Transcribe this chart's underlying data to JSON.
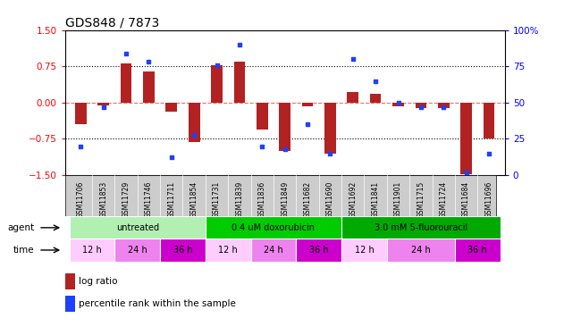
{
  "title": "GDS848 / 7873",
  "samples": [
    "GSM11706",
    "GSM11853",
    "GSM11729",
    "GSM11746",
    "GSM11711",
    "GSM11854",
    "GSM11731",
    "GSM11839",
    "GSM11836",
    "GSM11849",
    "GSM11682",
    "GSM11690",
    "GSM11692",
    "GSM11841",
    "GSM11901",
    "GSM11715",
    "GSM11724",
    "GSM11684",
    "GSM11696"
  ],
  "log_ratio": [
    -0.45,
    -0.05,
    0.82,
    0.65,
    -0.18,
    -0.82,
    0.78,
    0.85,
    -0.55,
    -1.0,
    -0.08,
    -1.05,
    0.22,
    0.18,
    -0.08,
    -0.12,
    -0.12,
    -1.48,
    -0.75
  ],
  "percentile": [
    20,
    47,
    84,
    78,
    12,
    28,
    76,
    90,
    20,
    18,
    35,
    15,
    80,
    65,
    50,
    47,
    47,
    2,
    15
  ],
  "ylim_left": [
    -1.5,
    1.5
  ],
  "ylim_right": [
    0,
    100
  ],
  "yticks_left": [
    -1.5,
    -0.75,
    0.0,
    0.75,
    1.5
  ],
  "yticks_right": [
    0,
    25,
    50,
    75,
    100
  ],
  "ytick_labels_right": [
    "0",
    "25",
    "50",
    "75",
    "100%"
  ],
  "dotted_lines": [
    0.75,
    -0.75
  ],
  "bar_color": "#b22222",
  "dot_color": "#1e40ff",
  "dashed_line_color": "#ff6666",
  "agents": [
    {
      "label": "untreated",
      "start": 0,
      "end": 6,
      "color": "#b2f0b2"
    },
    {
      "label": "0.4 uM doxorubicin",
      "start": 6,
      "end": 12,
      "color": "#00cc00"
    },
    {
      "label": "3.0 mM 5-fluorouracil",
      "start": 12,
      "end": 19,
      "color": "#00aa00"
    }
  ],
  "times": [
    {
      "label": "12 h",
      "start": 0,
      "end": 2,
      "color": "#ffccff"
    },
    {
      "label": "24 h",
      "start": 2,
      "end": 4,
      "color": "#ee82ee"
    },
    {
      "label": "36 h",
      "start": 4,
      "end": 6,
      "color": "#cc00cc"
    },
    {
      "label": "12 h",
      "start": 6,
      "end": 8,
      "color": "#ffccff"
    },
    {
      "label": "24 h",
      "start": 8,
      "end": 10,
      "color": "#ee82ee"
    },
    {
      "label": "36 h",
      "start": 10,
      "end": 12,
      "color": "#cc00cc"
    },
    {
      "label": "12 h",
      "start": 12,
      "end": 14,
      "color": "#ffccff"
    },
    {
      "label": "24 h",
      "start": 14,
      "end": 17,
      "color": "#ee82ee"
    },
    {
      "label": "36 h",
      "start": 17,
      "end": 19,
      "color": "#cc00cc"
    }
  ],
  "sample_bg_color": "#cccccc",
  "agent_row_label": "agent",
  "time_row_label": "time",
  "legend_bar_label": "log ratio",
  "legend_dot_label": "percentile rank within the sample",
  "bar_width": 0.5
}
